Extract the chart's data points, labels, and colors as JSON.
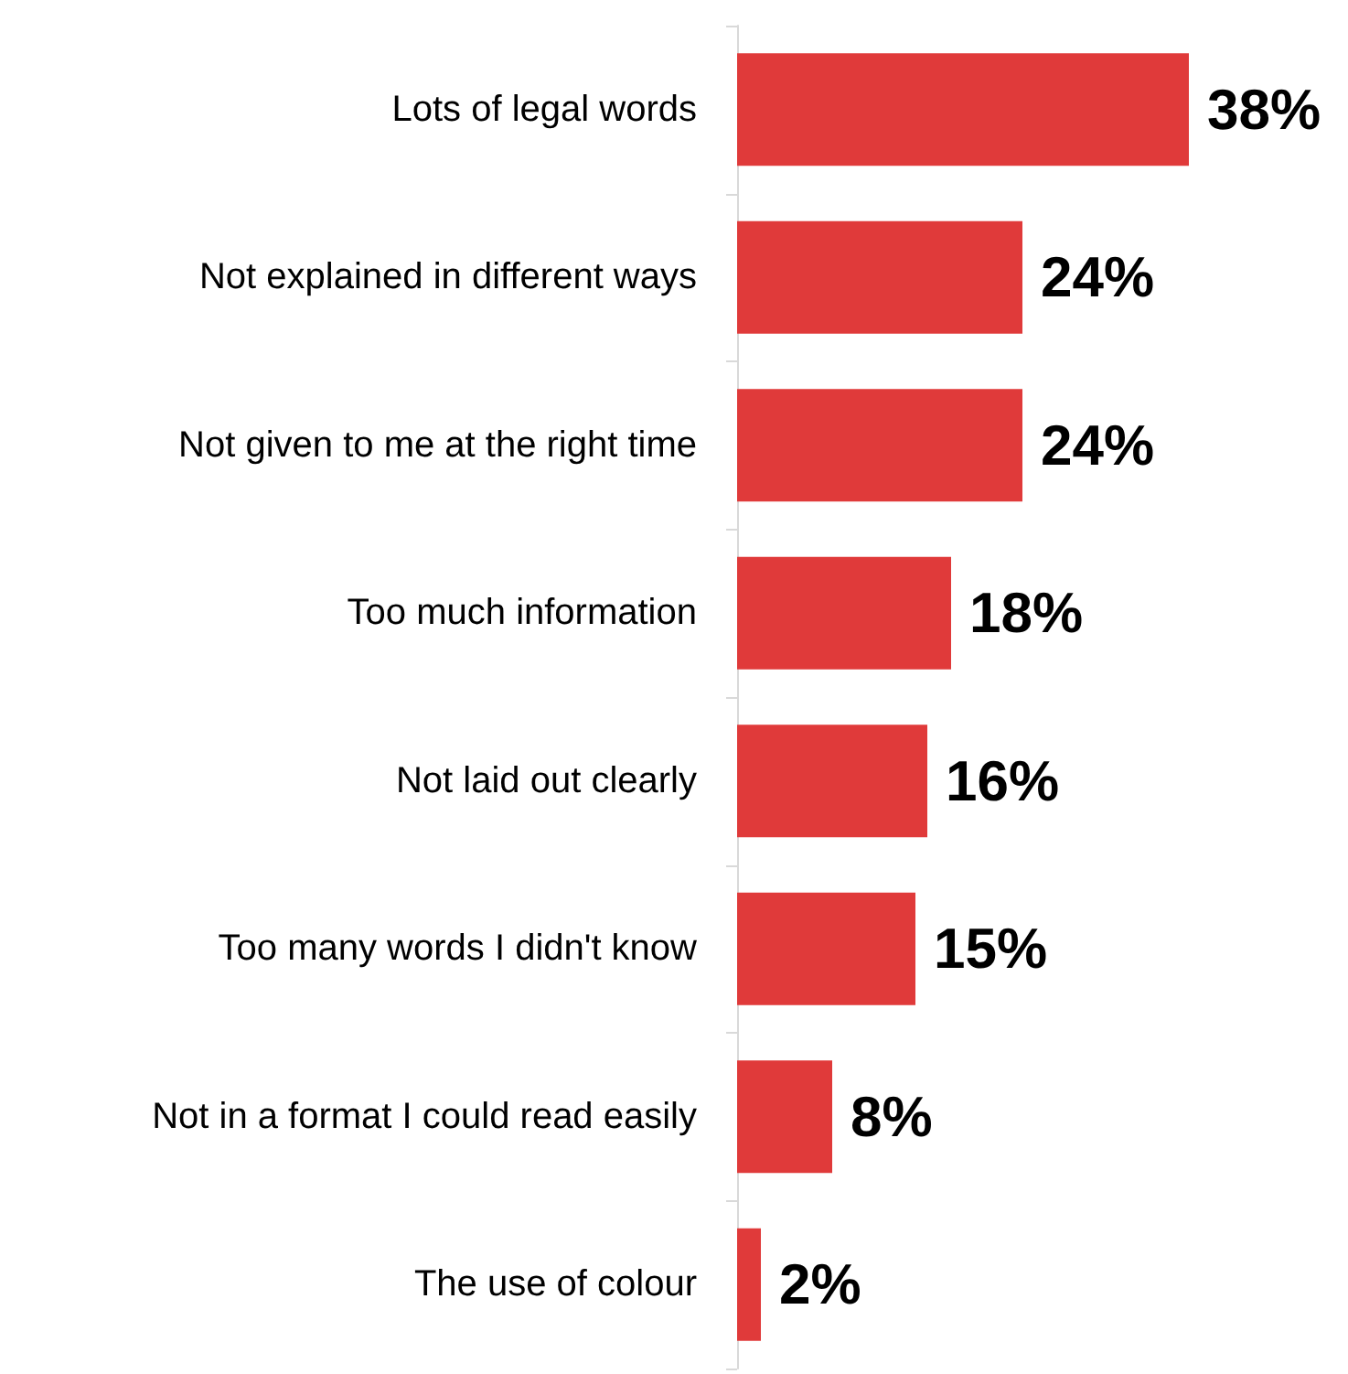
{
  "chart_data": {
    "type": "bar",
    "orientation": "horizontal",
    "categories": [
      "Lots of legal words",
      "Not explained in different ways",
      "Not given to me at the right time",
      "Too much information",
      "Not laid out clearly",
      "Too many words I didn't know",
      "Not in a format I could read easily",
      "The use of colour"
    ],
    "values": [
      38,
      24,
      24,
      18,
      16,
      15,
      8,
      2
    ],
    "value_labels": [
      "38%",
      "24%",
      "24%",
      "18%",
      "16%",
      "15%",
      "8%",
      "2%"
    ],
    "color": "#e03a3a",
    "tick_labels": "y"
  }
}
